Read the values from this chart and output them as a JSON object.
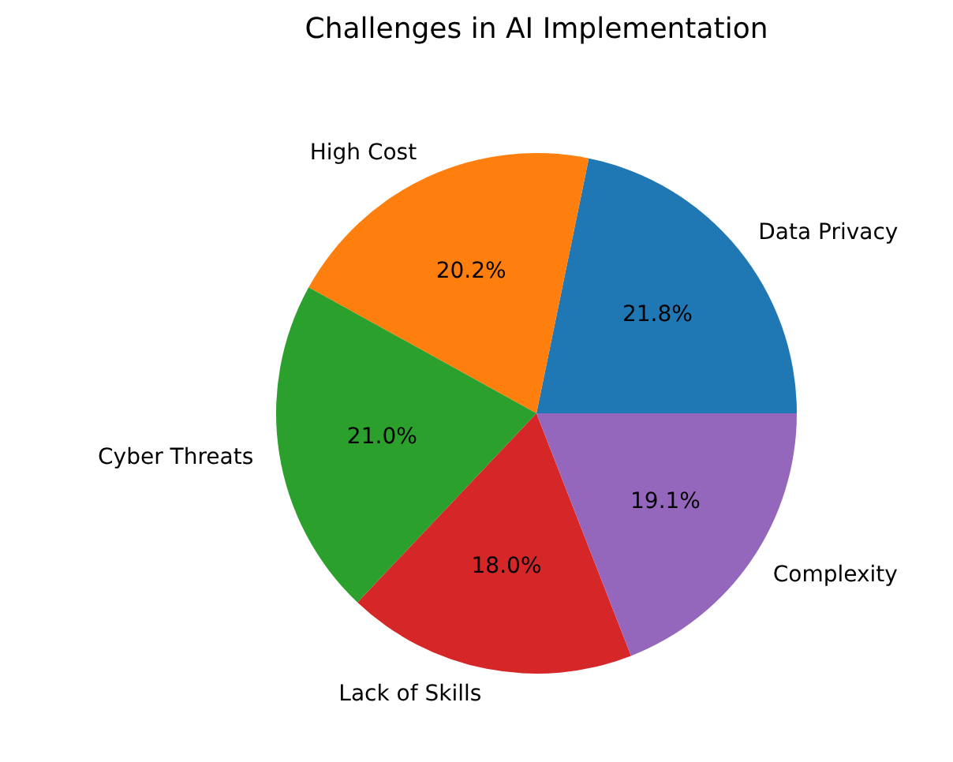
{
  "chart_data": {
    "type": "pie",
    "title": "Challenges in AI Implementation",
    "categories": [
      "Data Privacy",
      "High Cost",
      "Cyber Threats",
      "Lack of Skills",
      "Complexity"
    ],
    "values": [
      21.8,
      20.2,
      21.0,
      18.0,
      19.1
    ],
    "colors": [
      "#1f77b4",
      "#ff7f0e",
      "#2ca02c",
      "#d62728",
      "#9467bd"
    ],
    "value_labels": [
      "21.8%",
      "20.2%",
      "21.0%",
      "18.0%",
      "19.1%"
    ]
  }
}
